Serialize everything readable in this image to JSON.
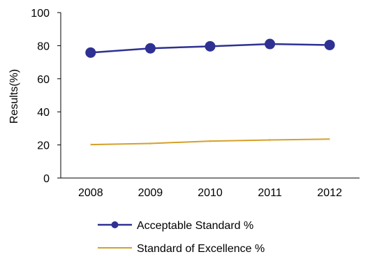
{
  "chart_data": {
    "type": "line",
    "title": "",
    "xlabel": "",
    "ylabel": "Results(%)",
    "categories": [
      "2008",
      "2009",
      "2010",
      "2011",
      "2012"
    ],
    "ylim": [
      0,
      100
    ],
    "yticks": [
      0,
      20,
      40,
      60,
      80,
      100
    ],
    "grid": false,
    "legend_position": "bottom",
    "series": [
      {
        "name": "Acceptable Standard %",
        "values": [
          75.8,
          78.4,
          79.6,
          81.0,
          80.4
        ],
        "color": "#2e3192",
        "marker": "circle"
      },
      {
        "name": "Standard of Excellence %",
        "values": [
          20.2,
          20.9,
          22.3,
          23.0,
          23.5
        ],
        "color": "#d4a02a",
        "marker": "none"
      }
    ]
  }
}
